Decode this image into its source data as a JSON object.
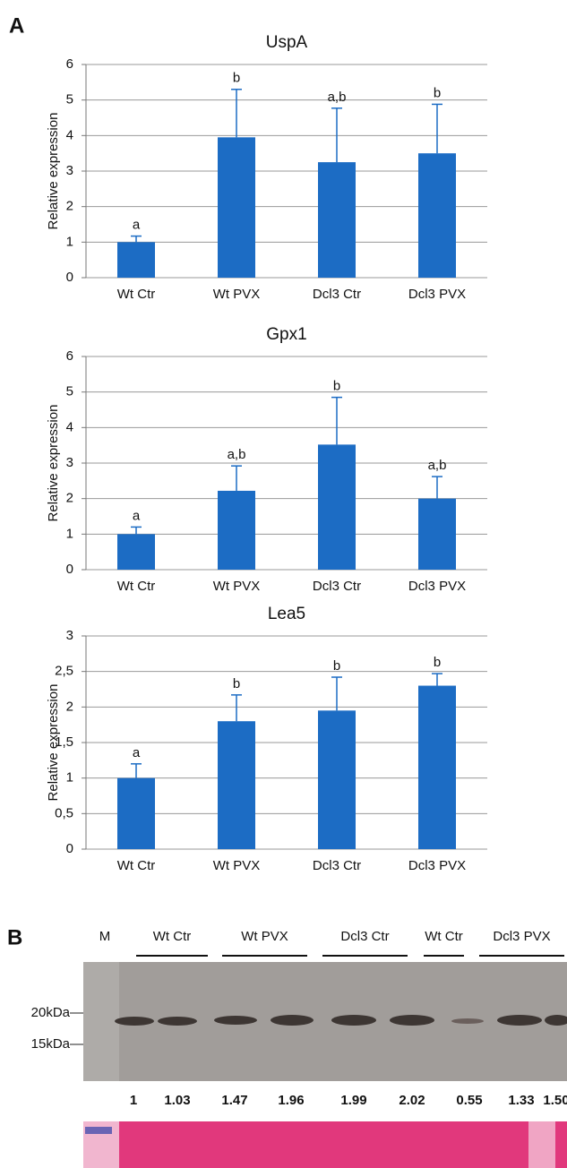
{
  "panels": [
    "A",
    "B"
  ],
  "chart_data": [
    {
      "type": "bar",
      "title": "UspA",
      "y_label": "Relative expression",
      "categories": [
        "Wt Ctr",
        "Wt PVX",
        "Dcl3 Ctr",
        "Dcl3 PVX"
      ],
      "values": [
        1,
        3.95,
        3.25,
        3.5
      ],
      "errors": [
        0.17,
        1.35,
        1.52,
        1.38
      ],
      "annotations": [
        "a",
        "b",
        "a,b",
        "b"
      ],
      "color": "#1c6cc4",
      "ylim": [
        0,
        6
      ],
      "yticks": [
        0,
        1,
        2,
        3,
        4,
        5,
        6
      ],
      "grid": true
    },
    {
      "type": "bar",
      "title": "Gpx1",
      "y_label": "Relative expression",
      "categories": [
        "Wt Ctr",
        "Wt PVX",
        "Dcl3 Ctr",
        "Dcl3 PVX"
      ],
      "values": [
        1,
        2.22,
        3.52,
        2.0
      ],
      "errors": [
        0.2,
        0.7,
        1.33,
        0.62
      ],
      "annotations": [
        "a",
        "a,b",
        "b",
        "a,b"
      ],
      "color": "#1c6cc4",
      "ylim": [
        0,
        6
      ],
      "yticks": [
        0,
        1,
        2,
        3,
        4,
        5,
        6
      ],
      "grid": true
    },
    {
      "type": "bar",
      "title": "Lea5",
      "y_label": "Relative expression",
      "categories": [
        "Wt Ctr",
        "Wt PVX",
        "Dcl3 Ctr",
        "Dcl3 PVX"
      ],
      "values": [
        1,
        1.8,
        1.95,
        2.3
      ],
      "errors": [
        0.2,
        0.37,
        0.47,
        0.17
      ],
      "annotations": [
        "a",
        "b",
        "b",
        "b"
      ],
      "color": "#1c6cc4",
      "ylim": [
        0,
        3
      ],
      "yticks": [
        0,
        {
          "value": 0.5,
          "label": "0,5"
        },
        1,
        {
          "value": 1.5,
          "label": "1,5"
        },
        2,
        {
          "value": 2.5,
          "label": "2,5"
        },
        3
      ],
      "grid": true
    }
  ],
  "blot": {
    "lane_marker": "M",
    "groups": [
      "Wt Ctr",
      "Wt PVX",
      "Dcl3 Ctr",
      "Wt Ctr",
      "Dcl3 PVX"
    ],
    "size_markers": [
      "20kDa",
      "15kDa"
    ],
    "quantification": [
      "1",
      "1.03",
      "1.47",
      "1.96",
      "1.99",
      "2.02",
      "0.55",
      "1.33",
      "1.50"
    ]
  }
}
